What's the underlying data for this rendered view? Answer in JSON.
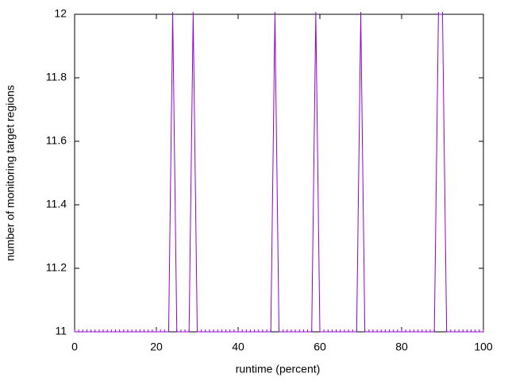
{
  "chart_data": {
    "type": "line",
    "xlabel": "runtime (percent)",
    "ylabel": "number of monitoring target regions",
    "x": [
      0,
      1,
      2,
      3,
      4,
      5,
      6,
      7,
      8,
      9,
      10,
      11,
      12,
      13,
      14,
      15,
      16,
      17,
      18,
      19,
      20,
      21,
      22,
      23,
      24,
      25,
      26,
      27,
      28,
      29,
      30,
      31,
      32,
      33,
      34,
      35,
      36,
      37,
      38,
      39,
      40,
      41,
      42,
      43,
      44,
      45,
      46,
      47,
      48,
      49,
      50,
      51,
      52,
      53,
      54,
      55,
      56,
      57,
      58,
      59,
      60,
      61,
      62,
      63,
      64,
      65,
      66,
      67,
      68,
      69,
      70,
      71,
      72,
      73,
      74,
      75,
      76,
      77,
      78,
      79,
      80,
      81,
      82,
      83,
      84,
      85,
      86,
      87,
      88,
      89,
      90,
      91,
      92,
      93,
      94,
      95,
      96,
      97,
      98,
      99,
      100
    ],
    "series": [
      {
        "color": "#9400d3",
        "values": [
          11,
          11,
          11,
          11,
          11,
          11,
          11,
          11,
          11,
          11,
          11,
          11,
          11,
          11,
          11,
          11,
          11,
          11,
          11,
          11,
          11,
          11,
          11,
          11,
          12,
          11,
          11,
          11,
          11,
          12,
          11,
          11,
          11,
          11,
          11,
          11,
          11,
          11,
          11,
          11,
          11,
          11,
          11,
          11,
          11,
          11,
          11,
          11,
          11,
          12,
          11,
          11,
          11,
          11,
          11,
          11,
          11,
          11,
          11,
          12,
          11,
          11,
          11,
          11,
          11,
          11,
          11,
          11,
          11,
          11,
          12,
          11,
          11,
          11,
          11,
          11,
          11,
          11,
          11,
          11,
          11,
          11,
          11,
          11,
          11,
          11,
          11,
          11,
          11,
          12,
          12,
          11,
          11,
          11,
          11,
          11,
          11,
          11,
          11,
          11,
          11
        ]
      }
    ],
    "xlim": [
      0,
      100
    ],
    "ylim": [
      11,
      12
    ],
    "xticks": [
      0,
      20,
      40,
      60,
      80,
      100
    ],
    "yticks": [
      11,
      11.2,
      11.4,
      11.6,
      11.8,
      12
    ]
  }
}
